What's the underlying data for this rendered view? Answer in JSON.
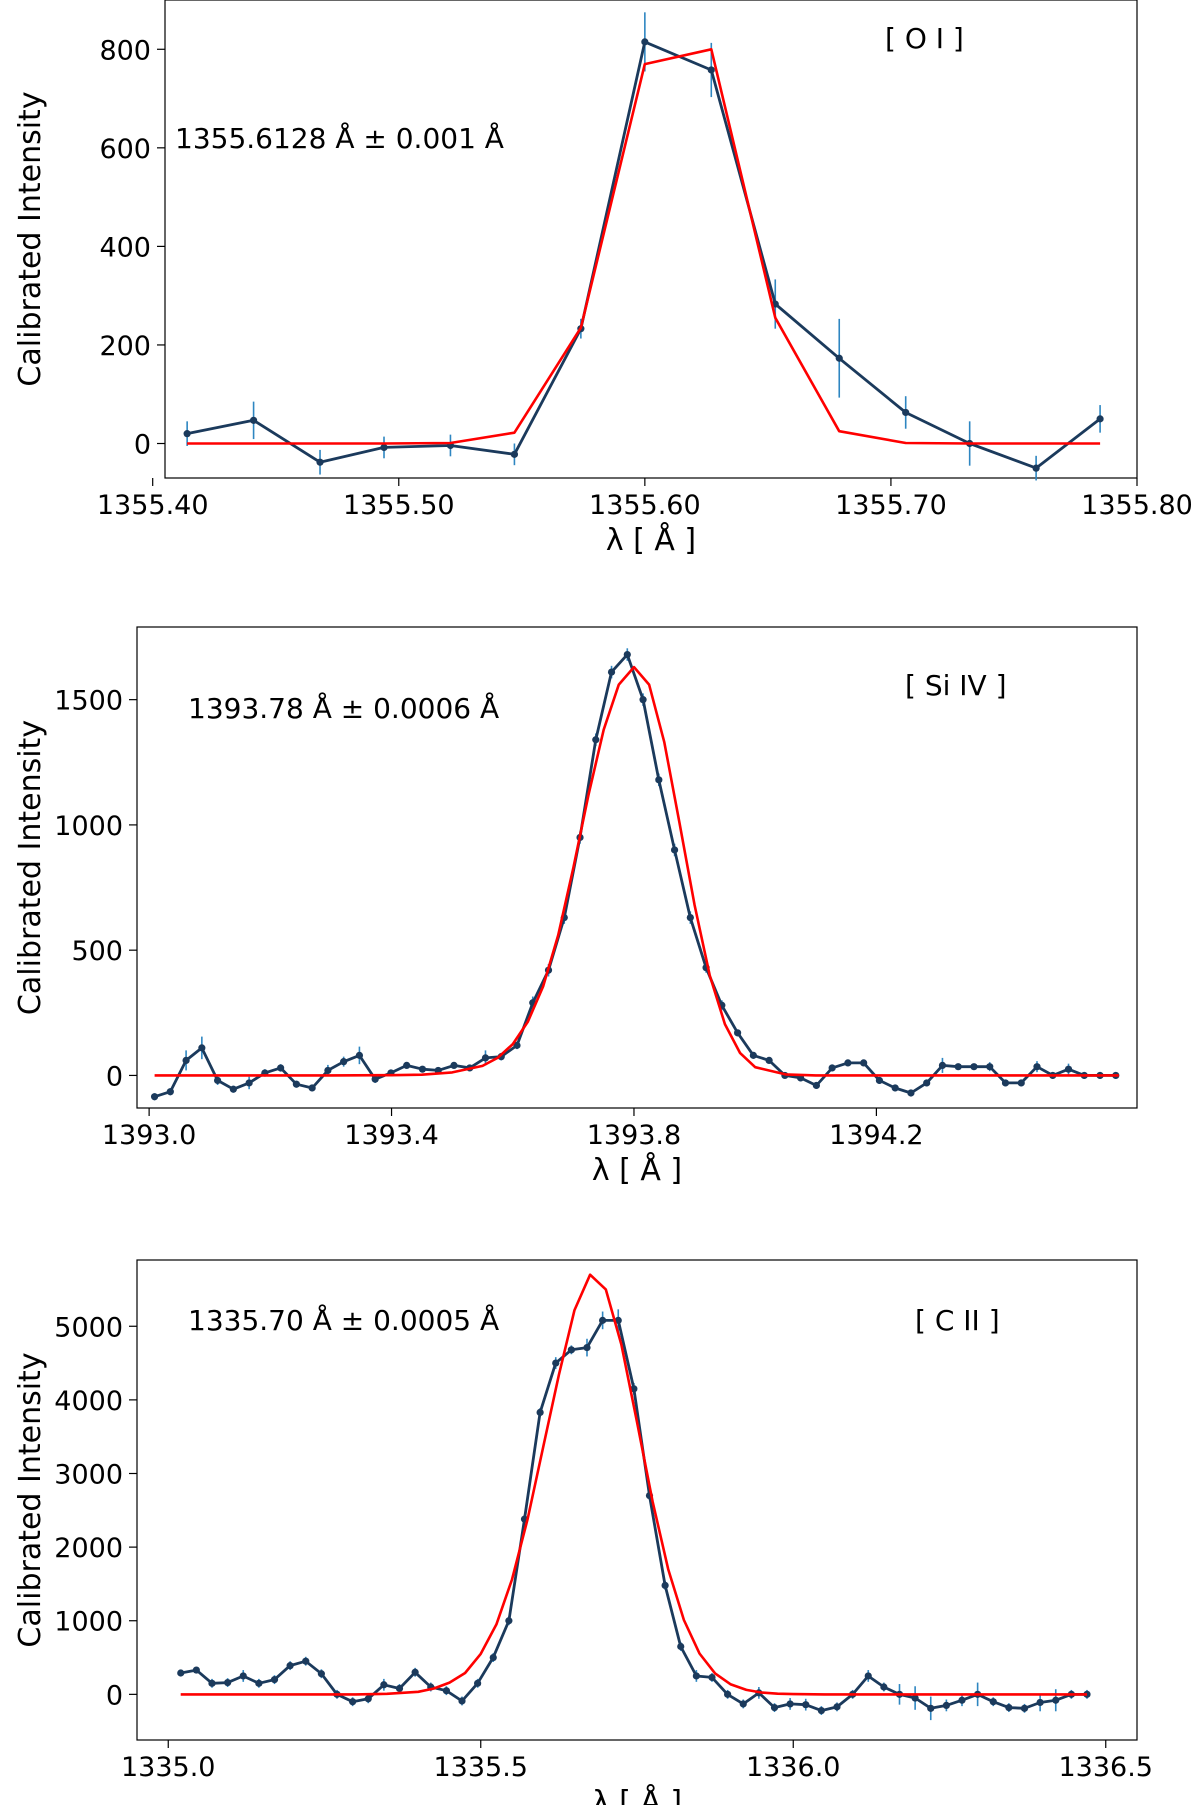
{
  "chart_data": [
    {
      "type": "line",
      "line_label": "[ O I ]",
      "annotation": "1355.6128 Å ± 0.001 Å",
      "xlabel": "λ [ Å ]",
      "ylabel": "Calibrated Intensity",
      "xlim": [
        1355.405,
        1355.8
      ],
      "ylim": [
        -70,
        900
      ],
      "xticks": [
        1355.4,
        1355.5,
        1355.6,
        1355.7,
        1355.8
      ],
      "xtick_labels": [
        "1355.40",
        "1355.50",
        "1355.60",
        "1355.70",
        "1355.80"
      ],
      "yticks": [
        0,
        200,
        400,
        600,
        800
      ],
      "ytick_labels": [
        "0",
        "200",
        "400",
        "600",
        "800"
      ],
      "series": [
        {
          "kind": "observed",
          "color": "#1b3a5c",
          "errcolor": "#2e86c1",
          "x": [
            1355.414,
            1355.441,
            1355.468,
            1355.494,
            1355.521,
            1355.547,
            1355.574,
            1355.6,
            1355.627,
            1355.653,
            1355.679,
            1355.706,
            1355.732,
            1355.759,
            1355.785
          ],
          "y": [
            20,
            47,
            -38,
            -8,
            -4,
            -22,
            233,
            815,
            758,
            283,
            173,
            63,
            0,
            -50,
            50
          ],
          "err": [
            25,
            38,
            25,
            22,
            22,
            22,
            20,
            60,
            55,
            50,
            80,
            33,
            45,
            25,
            28
          ]
        },
        {
          "kind": "fit",
          "color": "#ff0000",
          "x": [
            1355.414,
            1355.441,
            1355.468,
            1355.494,
            1355.521,
            1355.547,
            1355.574,
            1355.6,
            1355.627,
            1355.653,
            1355.679,
            1355.706,
            1355.732,
            1355.759,
            1355.785
          ],
          "y": [
            0,
            0,
            0,
            0,
            1,
            22,
            235,
            770,
            800,
            255,
            25,
            1,
            0,
            0,
            0
          ]
        }
      ]
    },
    {
      "type": "line",
      "line_label": "[ Si IV ]",
      "annotation": "1393.78 Å ± 0.0006 Å",
      "xlabel": "λ [ Å ]",
      "ylabel": "Calibrated Intensity",
      "xlim": [
        1392.98,
        1394.63
      ],
      "ylim": [
        -130,
        1790
      ],
      "xticks": [
        1393.0,
        1393.4,
        1393.8,
        1394.2
      ],
      "xtick_labels": [
        "1393.0",
        "1393.4",
        "1393.8",
        "1394.2"
      ],
      "yticks": [
        0,
        500,
        1000,
        1500
      ],
      "ytick_labels": [
        "0",
        "500",
        "1000",
        "1500"
      ],
      "series": [
        {
          "kind": "observed",
          "color": "#1b3a5c",
          "errcolor": "#2e86c1",
          "x": [
            1393.009,
            1393.035,
            1393.061,
            1393.087,
            1393.113,
            1393.139,
            1393.165,
            1393.191,
            1393.217,
            1393.243,
            1393.269,
            1393.295,
            1393.321,
            1393.347,
            1393.373,
            1393.399,
            1393.425,
            1393.451,
            1393.477,
            1393.503,
            1393.529,
            1393.555,
            1393.581,
            1393.607,
            1393.633,
            1393.659,
            1393.685,
            1393.711,
            1393.737,
            1393.763,
            1393.789,
            1393.815,
            1393.841,
            1393.867,
            1393.893,
            1393.919,
            1393.945,
            1393.971,
            1393.997,
            1394.023,
            1394.049,
            1394.075,
            1394.101,
            1394.127,
            1394.153,
            1394.179,
            1394.205,
            1394.231,
            1394.257,
            1394.283,
            1394.309,
            1394.335,
            1394.361,
            1394.387,
            1394.413,
            1394.439,
            1394.465,
            1394.491,
            1394.517,
            1394.543,
            1394.569,
            1394.595
          ],
          "y": [
            -85,
            -65,
            60,
            110,
            -20,
            -55,
            -30,
            10,
            30,
            -35,
            -50,
            20,
            55,
            80,
            -15,
            10,
            40,
            25,
            20,
            40,
            30,
            70,
            75,
            120,
            290,
            420,
            630,
            950,
            1340,
            1610,
            1680,
            1500,
            1180,
            900,
            630,
            430,
            280,
            170,
            80,
            60,
            0,
            -10,
            -40,
            30,
            50,
            50,
            -20,
            -50,
            -70,
            -30,
            40,
            35,
            35,
            35,
            -30,
            -30,
            35,
            0,
            25,
            0,
            0,
            0
          ],
          "err": [
            14,
            14,
            40,
            45,
            18,
            14,
            25,
            15,
            15,
            14,
            14,
            22,
            20,
            35,
            15,
            14,
            12,
            12,
            12,
            12,
            12,
            30,
            15,
            15,
            25,
            25,
            25,
            25,
            25,
            25,
            25,
            25,
            25,
            25,
            25,
            20,
            20,
            12,
            12,
            12,
            12,
            14,
            14,
            14,
            12,
            12,
            14,
            14,
            14,
            14,
            30,
            12,
            12,
            18,
            14,
            14,
            22,
            14,
            22,
            14,
            14,
            14
          ]
        },
        {
          "kind": "fit",
          "color": "#ff0000",
          "x": [
            1393.009,
            1393.1,
            1393.2,
            1393.3,
            1393.4,
            1393.45,
            1393.5,
            1393.55,
            1393.575,
            1393.6,
            1393.625,
            1393.65,
            1393.675,
            1393.7,
            1393.725,
            1393.75,
            1393.775,
            1393.8,
            1393.825,
            1393.85,
            1393.875,
            1393.9,
            1393.925,
            1393.95,
            1393.975,
            1394.0,
            1394.05,
            1394.1,
            1394.2,
            1394.3,
            1394.4,
            1394.5,
            1394.6
          ],
          "y": [
            0,
            0,
            0,
            0,
            1,
            3,
            12,
            38,
            70,
            125,
            215,
            355,
            560,
            830,
            1120,
            1380,
            1560,
            1630,
            1560,
            1330,
            1010,
            680,
            400,
            205,
            90,
            33,
            4,
            0,
            0,
            0,
            0,
            0,
            0
          ]
        }
      ]
    },
    {
      "type": "line",
      "line_label": "[ C II ]",
      "annotation": "1335.70 Å ± 0.0005 Å",
      "xlabel": "λ [ Å ]",
      "ylabel": "Calibrated Intensity",
      "xlim": [
        1334.95,
        1336.55
      ],
      "ylim": [
        -620,
        5900
      ],
      "xticks": [
        1335.0,
        1335.5,
        1336.0,
        1336.5
      ],
      "xtick_labels": [
        "1335.0",
        "1335.5",
        "1336.0",
        "1336.5"
      ],
      "yticks": [
        0,
        1000,
        2000,
        3000,
        4000,
        5000
      ],
      "ytick_labels": [
        "0",
        "1000",
        "2000",
        "3000",
        "4000",
        "5000"
      ],
      "series": [
        {
          "kind": "observed",
          "color": "#1b3a5c",
          "errcolor": "#2e86c1",
          "x": [
            1335.02,
            1335.045,
            1335.07,
            1335.095,
            1335.12,
            1335.145,
            1335.17,
            1335.195,
            1335.22,
            1335.245,
            1335.27,
            1335.295,
            1335.32,
            1335.345,
            1335.37,
            1335.395,
            1335.42,
            1335.445,
            1335.47,
            1335.495,
            1335.52,
            1335.545,
            1335.57,
            1335.595,
            1335.62,
            1335.645,
            1335.67,
            1335.695,
            1335.72,
            1335.745,
            1335.77,
            1335.795,
            1335.82,
            1335.845,
            1335.87,
            1335.895,
            1335.92,
            1335.945,
            1335.97,
            1335.995,
            1336.02,
            1336.045,
            1336.07,
            1336.095,
            1336.12,
            1336.145,
            1336.17,
            1336.195,
            1336.22,
            1336.245,
            1336.27,
            1336.295,
            1336.32,
            1336.345,
            1336.37,
            1336.395,
            1336.42,
            1336.445,
            1336.47
          ],
          "y": [
            290,
            330,
            150,
            160,
            250,
            150,
            200,
            390,
            450,
            280,
            0,
            -100,
            -60,
            130,
            80,
            300,
            100,
            50,
            -90,
            150,
            500,
            1000,
            2380,
            3830,
            4500,
            4680,
            4710,
            5080,
            5080,
            4150,
            2700,
            1480,
            650,
            250,
            230,
            0,
            -130,
            20,
            -180,
            -130,
            -140,
            -220,
            -170,
            0,
            250,
            100,
            0,
            -50,
            -190,
            -150,
            -80,
            0,
            -100,
            -180,
            -190,
            -110,
            -80,
            0,
            0
          ],
          "err": [
            40,
            40,
            60,
            60,
            80,
            60,
            60,
            60,
            60,
            60,
            60,
            60,
            60,
            80,
            60,
            60,
            60,
            60,
            60,
            60,
            60,
            60,
            60,
            60,
            80,
            60,
            120,
            120,
            150,
            80,
            60,
            60,
            60,
            80,
            60,
            60,
            60,
            80,
            60,
            80,
            80,
            60,
            60,
            60,
            80,
            60,
            140,
            160,
            160,
            80,
            80,
            160,
            60,
            60,
            60,
            120,
            150,
            60,
            60
          ]
        },
        {
          "kind": "fit",
          "color": "#ff0000",
          "x": [
            1335.02,
            1335.1,
            1335.2,
            1335.3,
            1335.35,
            1335.4,
            1335.425,
            1335.45,
            1335.475,
            1335.5,
            1335.525,
            1335.55,
            1335.575,
            1335.6,
            1335.625,
            1335.65,
            1335.675,
            1335.7,
            1335.725,
            1335.75,
            1335.775,
            1335.8,
            1335.825,
            1335.85,
            1335.875,
            1335.9,
            1335.925,
            1335.95,
            1335.975,
            1336.0,
            1336.05,
            1336.1,
            1336.2,
            1336.3,
            1336.4,
            1336.47
          ],
          "y": [
            0,
            0,
            0,
            0,
            8,
            35,
            80,
            160,
            290,
            550,
            950,
            1560,
            2380,
            3360,
            4340,
            5220,
            5700,
            5500,
            4750,
            3700,
            2620,
            1700,
            1010,
            555,
            285,
            135,
            60,
            24,
            9,
            3,
            0,
            0,
            0,
            0,
            0,
            0
          ]
        }
      ]
    }
  ]
}
